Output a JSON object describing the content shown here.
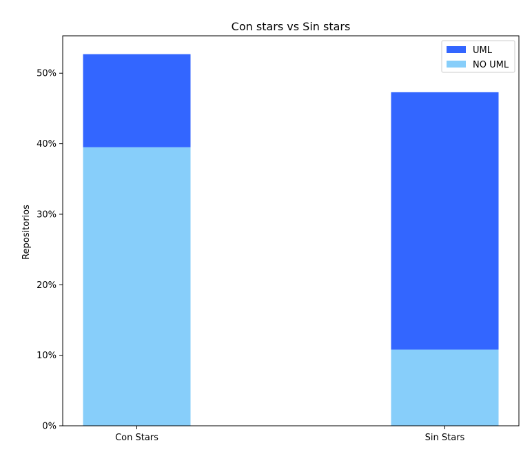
{
  "chart_data": {
    "type": "bar",
    "stacked": true,
    "title": "Con stars vs Sin stars",
    "xlabel": "",
    "ylabel": "Repositorios",
    "categories": [
      "Con Stars",
      "Sin Stars"
    ],
    "series": [
      {
        "name": "NO UML",
        "values": [
          39.5,
          10.8
        ],
        "color": "#87CEFA"
      },
      {
        "name": "UML",
        "values": [
          13.2,
          36.5
        ],
        "color": "#3366FF"
      }
    ],
    "ylim": [
      0,
      55.3
    ],
    "yticks": [
      0,
      10,
      20,
      30,
      40,
      50
    ],
    "ytick_labels": [
      "0%",
      "10%",
      "20%",
      "30%",
      "40%",
      "50%"
    ],
    "grid": false,
    "legend_position": "top-right",
    "legend_order": [
      "UML",
      "NO UML"
    ]
  }
}
